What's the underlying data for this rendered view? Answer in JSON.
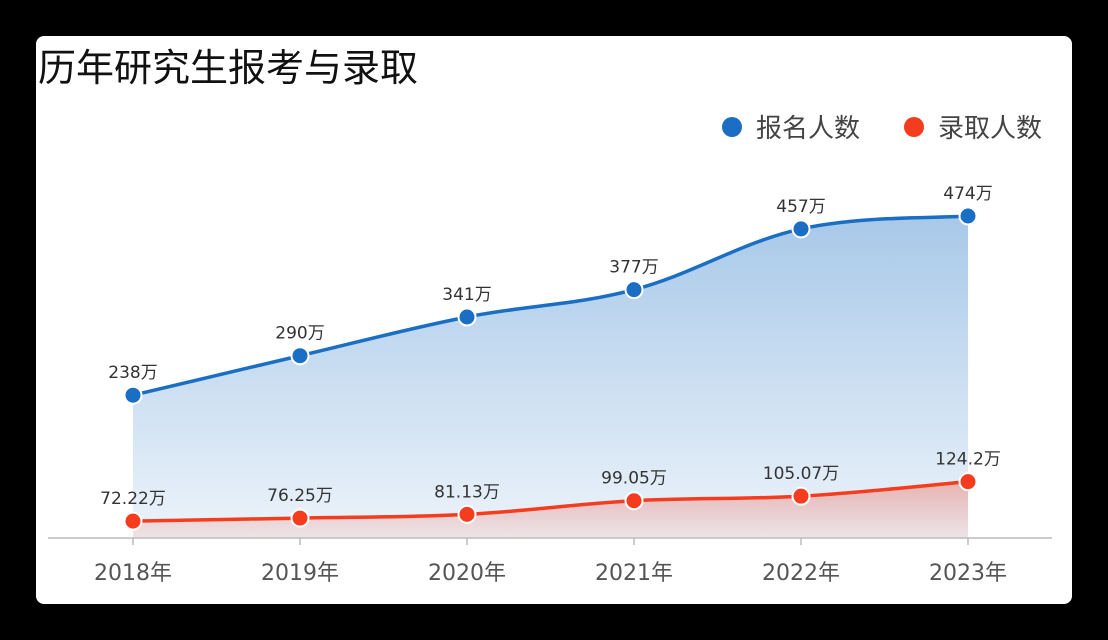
{
  "chart_data": {
    "type": "area",
    "title": "历年研究生报考与录取",
    "categories": [
      "2018年",
      "2019年",
      "2020年",
      "2021年",
      "2022年",
      "2023年"
    ],
    "series": [
      {
        "name": "报名人数",
        "values": [
          238,
          290,
          341,
          377,
          457,
          474
        ],
        "labels": [
          "238万",
          "290万",
          "341万",
          "377万",
          "457万",
          "474万"
        ],
        "color": "#1a6fc4"
      },
      {
        "name": "录取人数",
        "values": [
          72.22,
          76.25,
          81.13,
          99.05,
          105.07,
          124.2
        ],
        "labels": [
          "72.22万",
          "76.25万",
          "81.13万",
          "99.05万",
          "105.07万",
          "124.2万"
        ],
        "color": "#f53c1e"
      }
    ],
    "ylim": [
      50,
      500
    ],
    "legend_position": "top-right",
    "grid": false
  }
}
